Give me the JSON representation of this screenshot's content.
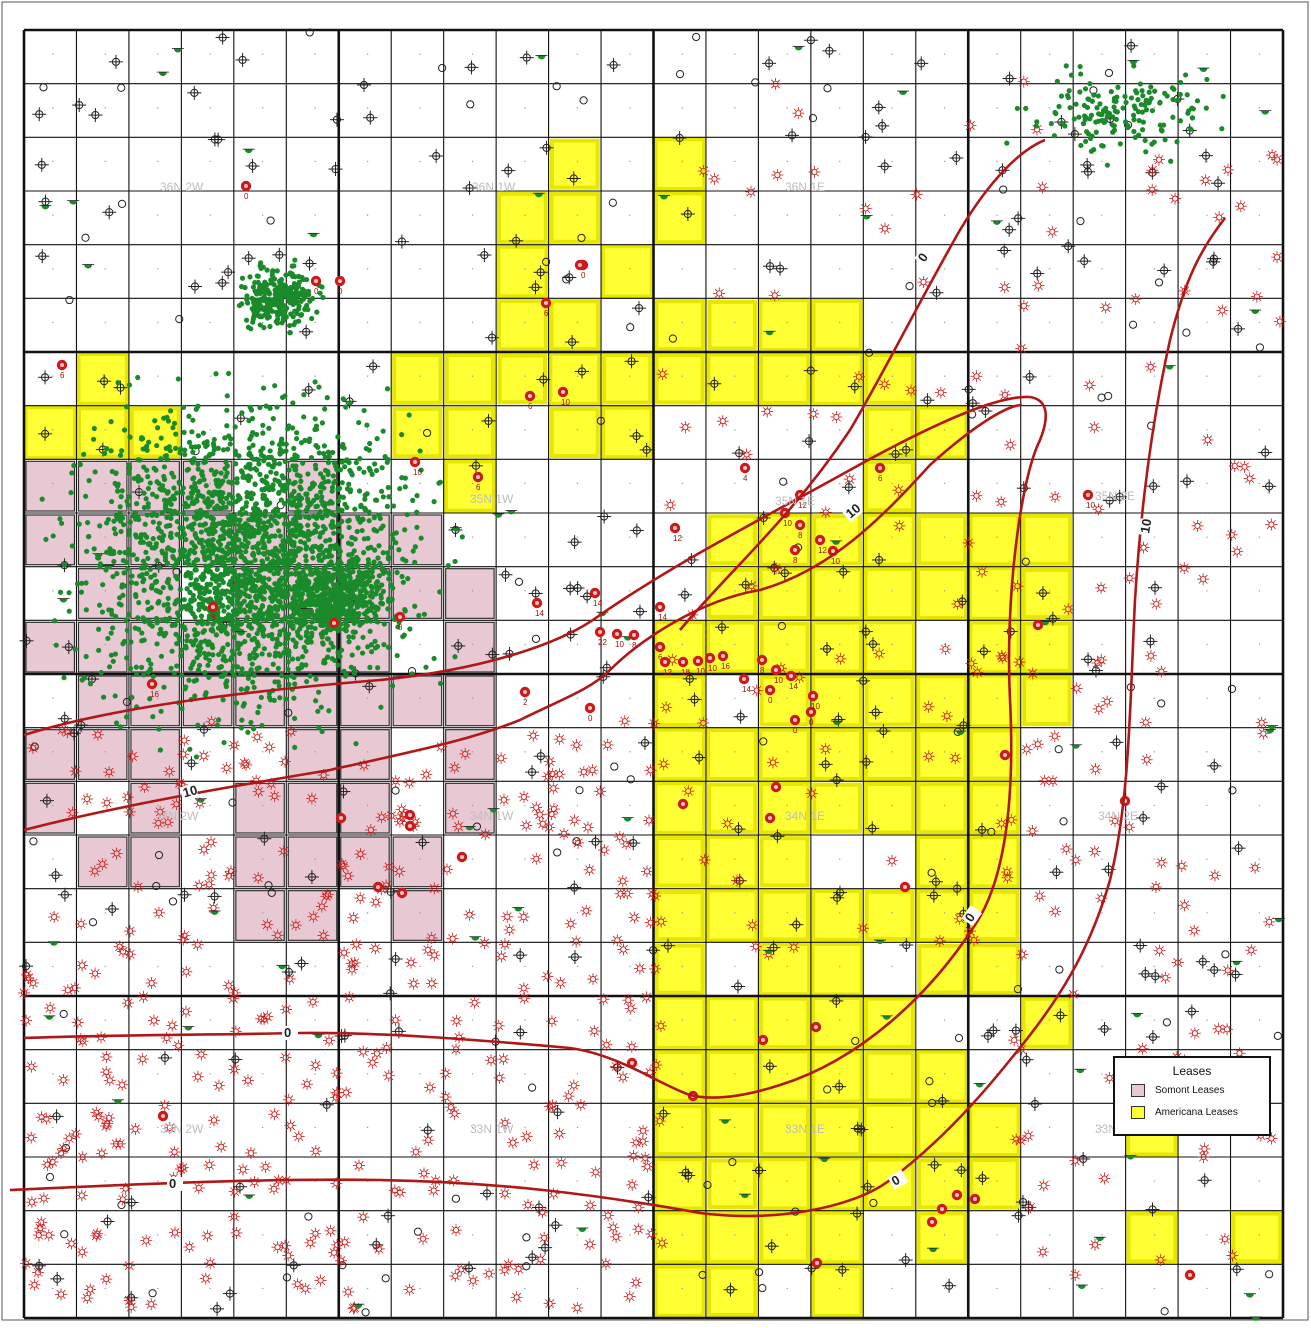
{
  "map": {
    "townships": [
      {
        "label": "36N 2W"
      },
      {
        "label": "36N 1W"
      },
      {
        "label": "36N 1E"
      },
      {
        "label": "35N 1W"
      },
      {
        "label": "35N 1E"
      },
      {
        "label": "35N 2E"
      },
      {
        "label": "34N 2W"
      },
      {
        "label": "34N 1W"
      },
      {
        "label": "34N 1E"
      },
      {
        "label": "34N 2E"
      },
      {
        "label": "33N 2W"
      },
      {
        "label": "33N 1W"
      },
      {
        "label": "33N 1E"
      },
      {
        "label": "33N 2E"
      }
    ],
    "contour_labels": [
      "0",
      "10",
      "10",
      "0",
      "10",
      "0",
      "0",
      "0"
    ],
    "well_labels": [
      "0",
      "0",
      "0",
      "0",
      "6",
      "6",
      "6",
      "10",
      "10",
      "6",
      "4",
      "6",
      "10",
      "12",
      "10",
      "8",
      "12",
      "12",
      "10",
      "8",
      "14",
      "14",
      "14",
      "22",
      "10",
      "8",
      "6",
      "12",
      "18",
      "10",
      "10",
      "16",
      "14",
      "8",
      "10",
      "14",
      "10",
      "0",
      "0",
      "0",
      "0",
      "2",
      "8",
      "16",
      "0"
    ],
    "colors": {
      "grid": "#111111",
      "contour": "#b01818",
      "somont_fill": "#e8c9d3",
      "americana_fill": "#ffff33",
      "americana_edge": "#e6e600",
      "green_well": "#1a8a2a",
      "red_well": "#cc1a1a"
    }
  },
  "legend": {
    "title": "Leases",
    "items": [
      {
        "label": "Somont Leases",
        "color": "#e8c9d3"
      },
      {
        "label": "Americana Leases",
        "color": "#ffff33"
      }
    ]
  }
}
